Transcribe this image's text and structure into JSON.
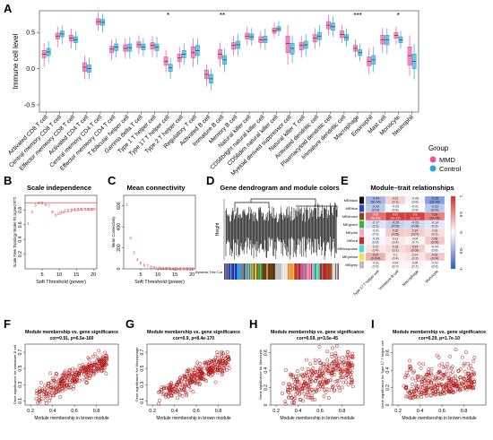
{
  "colors": {
    "mmd": "#e8559e",
    "control": "#29a8d6",
    "network_red": "#d42a2a",
    "scatter": "#b01818",
    "heat_neg": "#2c58c8",
    "heat_pos": "#d42a2a",
    "heat_mid": "#ffffff"
  },
  "chart_data": [
    {
      "panel": "A",
      "type": "box",
      "ylabel": "Immune cell level",
      "ylim": [
        -0.6,
        0.8
      ],
      "yticks": [
        "-0.5",
        "0.0",
        "0.5"
      ],
      "legend": {
        "title": "Group",
        "entries": [
          "MMD",
          "Control"
        ],
        "position": "right"
      },
      "categories": [
        "Activated CD8 T cell",
        "Central memory CD8 T cell",
        "Effector memeory CD8 T cell",
        "Activated CD4 T cell",
        "Central memory CD4 T cell",
        "Effector memeory CD4 T cell",
        "T follicular helper cell",
        "Gamma delta T cell",
        "Type 1 T helper cell",
        "Type 17 T helper cell",
        "Type 2 T helper cell",
        "Regulatory T cell",
        "Activated B cell",
        "Immature B cell",
        "Memory B cell",
        "Natural killer cell",
        "CD56bright natural killer cell",
        "CD56dim natural killer cell",
        "Myeloid derived suppressor cell",
        "Natural killer T cell",
        "Activated dendritic cell",
        "Plasmacytoid dendritic cell",
        "Immature dendritic cell",
        "Macrophage",
        "Eosinophil",
        "Mast cell",
        "Monocyte",
        "Neutrophil"
      ],
      "significance": [
        "",
        "",
        "",
        "",
        "",
        "",
        "",
        "",
        "",
        "*",
        "",
        "",
        "",
        "**",
        "",
        "",
        "",
        "",
        "",
        "",
        "",
        "",
        "",
        "***",
        "",
        "",
        "*",
        ""
      ],
      "series": [
        {
          "name": "MMD",
          "medians": [
            0.2,
            0.45,
            0.42,
            0.02,
            0.65,
            0.27,
            0.28,
            0.33,
            0.32,
            0.1,
            0.15,
            0.22,
            -0.08,
            0.2,
            0.32,
            0.45,
            0.4,
            0.52,
            0.35,
            0.32,
            0.42,
            0.6,
            0.47,
            0.28,
            0.1,
            0.4,
            0.46,
            0.18
          ],
          "q1": [
            0.15,
            0.41,
            0.38,
            -0.04,
            0.61,
            0.22,
            0.24,
            0.29,
            0.27,
            0.05,
            0.1,
            0.15,
            -0.14,
            0.14,
            0.27,
            0.41,
            0.36,
            0.49,
            0.22,
            0.26,
            0.37,
            0.55,
            0.43,
            0.24,
            0.04,
            0.34,
            0.42,
            0.05
          ],
          "q3": [
            0.25,
            0.49,
            0.46,
            0.08,
            0.69,
            0.31,
            0.33,
            0.37,
            0.36,
            0.16,
            0.2,
            0.3,
            -0.02,
            0.26,
            0.36,
            0.49,
            0.44,
            0.56,
            0.45,
            0.36,
            0.47,
            0.65,
            0.52,
            0.32,
            0.16,
            0.46,
            0.5,
            0.3
          ],
          "min": [
            0.02,
            0.3,
            0.28,
            -0.15,
            0.52,
            0.12,
            0.14,
            0.2,
            0.16,
            -0.05,
            0.0,
            0.02,
            -0.25,
            0.02,
            0.18,
            0.32,
            0.28,
            0.42,
            0.05,
            0.15,
            0.27,
            0.46,
            0.35,
            0.15,
            -0.08,
            0.22,
            0.34,
            -0.1
          ],
          "max": [
            0.35,
            0.58,
            0.55,
            0.18,
            0.78,
            0.4,
            0.42,
            0.46,
            0.45,
            0.26,
            0.3,
            0.42,
            0.06,
            0.36,
            0.45,
            0.58,
            0.52,
            0.64,
            0.6,
            0.45,
            0.56,
            0.74,
            0.6,
            0.4,
            0.28,
            0.56,
            0.58,
            0.46
          ]
        },
        {
          "name": "Control",
          "medians": [
            0.23,
            0.48,
            0.4,
            0.0,
            0.64,
            0.3,
            0.29,
            0.3,
            0.3,
            0.01,
            0.2,
            0.25,
            -0.14,
            0.12,
            0.33,
            0.44,
            0.4,
            0.55,
            0.28,
            0.33,
            0.45,
            0.58,
            0.43,
            0.22,
            0.12,
            0.4,
            0.4,
            0.1
          ],
          "q1": [
            0.18,
            0.44,
            0.36,
            -0.05,
            0.6,
            0.25,
            0.24,
            0.26,
            0.25,
            -0.04,
            0.15,
            0.18,
            -0.2,
            0.06,
            0.28,
            0.4,
            0.36,
            0.52,
            0.2,
            0.28,
            0.4,
            0.53,
            0.39,
            0.18,
            0.06,
            0.33,
            0.36,
            0.0
          ],
          "q3": [
            0.28,
            0.52,
            0.44,
            0.05,
            0.68,
            0.34,
            0.34,
            0.34,
            0.34,
            0.06,
            0.25,
            0.32,
            -0.08,
            0.18,
            0.38,
            0.48,
            0.45,
            0.58,
            0.35,
            0.38,
            0.5,
            0.63,
            0.47,
            0.26,
            0.18,
            0.46,
            0.44,
            0.2
          ],
          "min": [
            0.08,
            0.34,
            0.26,
            -0.15,
            0.5,
            0.15,
            0.14,
            0.17,
            0.15,
            -0.14,
            0.05,
            0.05,
            -0.3,
            -0.05,
            0.18,
            0.32,
            0.26,
            0.45,
            0.08,
            0.18,
            0.3,
            0.44,
            0.3,
            0.1,
            -0.05,
            0.2,
            0.28,
            -0.15
          ],
          "max": [
            0.38,
            0.6,
            0.52,
            0.15,
            0.76,
            0.42,
            0.44,
            0.42,
            0.44,
            0.15,
            0.35,
            0.42,
            0.0,
            0.28,
            0.48,
            0.56,
            0.55,
            0.66,
            0.46,
            0.48,
            0.6,
            0.72,
            0.56,
            0.34,
            0.3,
            0.56,
            0.52,
            0.34
          ]
        }
      ]
    },
    {
      "panel": "B",
      "type": "scatter",
      "title": "Scale independence",
      "xlabel": "Soft Threshold (power)",
      "ylabel": "Scale Free Topology Model Fit,signed R^2",
      "xlim": [
        0,
        21
      ],
      "ylim": [
        0,
        1
      ],
      "xticks": [
        5,
        10,
        15,
        20
      ],
      "yticks": [
        0.2,
        0.4,
        0.6,
        0.8
      ],
      "cutoff": 0.9,
      "x": [
        1,
        2,
        3,
        4,
        5,
        6,
        7,
        8,
        9,
        10,
        11,
        12,
        13,
        14,
        15,
        16,
        17,
        18,
        19,
        20
      ],
      "y": [
        0.62,
        0.78,
        0.87,
        0.9,
        0.9,
        0.88,
        0.86,
        0.78,
        0.74,
        0.76,
        0.78,
        0.8,
        0.8,
        0.81,
        0.81,
        0.82,
        0.82,
        0.82,
        0.82,
        0.82
      ]
    },
    {
      "panel": "C",
      "type": "scatter",
      "title": "Mean connectivity",
      "xlabel": "Soft Threshold (power)",
      "ylabel": "Mean Connectivity",
      "xlim": [
        0,
        21
      ],
      "ylim": [
        0,
        700
      ],
      "xticks": [
        5,
        10,
        15,
        20
      ],
      "yticks": [
        0,
        200,
        400,
        600
      ],
      "x": [
        1,
        2,
        3,
        4,
        5,
        6,
        7,
        8,
        9,
        10,
        11,
        12,
        13,
        14,
        15,
        16,
        17,
        18,
        19,
        20
      ],
      "y": [
        620,
        300,
        160,
        95,
        60,
        40,
        28,
        20,
        15,
        12,
        10,
        8,
        7,
        6,
        5,
        4,
        4,
        3,
        3,
        3
      ]
    },
    {
      "panel": "D",
      "type": "dendrogram",
      "title": "Gene dendrogram and module colors",
      "ylabel": "Height",
      "track_label": "Dynamic Tree Cut",
      "module_colors": [
        "#1e3fd2",
        "#1e3fd2",
        "#3a9de0",
        "#3a9de0",
        "#8ed34a",
        "#2c9e2c",
        "#6b3b1a",
        "#6b3b1a",
        "#c0c0c0",
        "#e6e6e6",
        "#f2c94c",
        "#d13030",
        "#c75a9a",
        "#ff8fbf",
        "#40e0d0",
        "#b02828",
        "#a0522d",
        "#d9d9d9"
      ]
    },
    {
      "panel": "E",
      "type": "heatmap",
      "title": "Module–trait relationships",
      "rows": [
        "MEblack",
        "MEblue",
        "MEbrown",
        "MEgreen",
        "MEpink",
        "MEred",
        "MEturquoise",
        "MEyellow",
        "MEgrey"
      ],
      "row_colors": [
        "#111111",
        "#2a42d4",
        "#8b4513",
        "#34b434",
        "#f7a3c3",
        "#e02020",
        "#40e0d0",
        "#f4e04d",
        "#bdbdbd"
      ],
      "columns": [
        "Type 17 T helper cell",
        "Immature B cell",
        "Macrophage",
        "Monocyte"
      ],
      "values": [
        [
          -0.44,
          0.21,
          -0.06,
          -0.58
        ],
        [
          -0.33,
          -0.03,
          -0.01,
          -0.33
        ],
        [
          0.68,
          0.91,
          0.9,
          0.59
        ],
        [
          -0.17,
          -0.29,
          -0.23,
          -0.14
        ],
        [
          -0.01,
          0.25,
          0.24,
          0.16
        ],
        [
          -0.06,
          0.11,
          0.04,
          0.26
        ],
        [
          0.12,
          0.18,
          0.24,
          -0.04
        ],
        [
          0.37,
          0.1,
          0.14,
          0.26
        ],
        [
          -0.01,
          0.04,
          0.05,
          -0.02
        ]
      ],
      "labels": [
        [
          "-0.44\n(5e-04)",
          "0.21\n(0.1)",
          "-0.06\n(0.6)",
          "-0.58\n(2e-06)"
        ],
        [
          "-0.33\n(0.01)",
          "-0.03\n(0.8)",
          "-0.01\n(0.9)",
          "-0.33\n(0.01)"
        ],
        [
          "0.68\n(4e-09)",
          "0.91\n(1e-22)",
          "0.9\n(1e-21)",
          "0.59\n(1e-06)"
        ],
        [
          "-0.17\n(0.2)",
          "-0.29\n(0.03)",
          "-0.23\n(0.08)",
          "-0.14\n(0.3)"
        ],
        [
          "-0.01\n(0.9)",
          "0.25\n(0.05)",
          "0.24\n(0.07)",
          "0.16\n(0.2)"
        ],
        [
          "-0.06\n(0.6)",
          "0.11\n(0.4)",
          "0.04\n(0.7)",
          "0.26\n(0.05)"
        ],
        [
          "0.12\n(0.4)",
          "0.18\n(0.2)",
          "0.24\n(0.06)",
          "-0.04\n(0.8)"
        ],
        [
          "0.37\n(0.004)",
          "0.1\n(0.4)",
          "0.14\n(0.3)",
          "0.26\n(0.04)"
        ],
        [
          "-0.01\n(0.9)",
          "0.04\n(0.7)",
          "0.05\n(0.7)",
          "-0.02\n(0.9)"
        ]
      ],
      "colorbar_ticks": [
        "1",
        "0.5",
        "0",
        "-0.5",
        "-1"
      ],
      "colorbar_range": [
        -1,
        1
      ]
    },
    {
      "panel": "F",
      "type": "scatter",
      "title": "Module membership vs. gene significance",
      "subtitle": "cor=0.91, p=6.5e-160",
      "xlabel": "Module membership in brown module",
      "ylabel": "Gene significance for Immature B cell",
      "xlim": [
        0.15,
        1.0
      ],
      "ylim": [
        0.05,
        0.8
      ],
      "xticks": [
        0.2,
        0.4,
        0.6,
        0.8
      ],
      "yticks": [
        0.1,
        0.3,
        0.5,
        0.7
      ],
      "n_points": 320,
      "correlation": 0.91
    },
    {
      "panel": "G",
      "type": "scatter",
      "title": "Module membership vs. gene significance",
      "subtitle": "cor=0.9, p=8.4e-170",
      "xlabel": "Module membership in brown module",
      "ylabel": "Gene significance for Macrophage",
      "xlim": [
        0.15,
        1.0
      ],
      "ylim": [
        0.05,
        0.8
      ],
      "xticks": [
        0.2,
        0.4,
        0.6,
        0.8
      ],
      "yticks": [
        0.1,
        0.3,
        0.5,
        0.7
      ],
      "n_points": 320,
      "correlation": 0.9
    },
    {
      "panel": "H",
      "type": "scatter",
      "title": "Module membership vs. gene significance",
      "subtitle": "cor=0.59, p=3.5e-45",
      "xlabel": "Module membership in brown module",
      "ylabel": "Gene significance for Monocyte",
      "xlim": [
        0.15,
        1.0
      ],
      "ylim": [
        0.0,
        0.7
      ],
      "xticks": [
        0.2,
        0.4,
        0.6,
        0.8
      ],
      "yticks": [
        0.0,
        0.2,
        0.4,
        0.6
      ],
      "n_points": 320,
      "correlation": 0.59
    },
    {
      "panel": "I",
      "type": "scatter",
      "title": "Module membership vs. gene significance",
      "subtitle": "cor=0.29, p=1.7e-10",
      "xlabel": "Module membership in brown module",
      "ylabel": "Gene significance for Type 17 T helper cell",
      "xlim": [
        0.15,
        1.0
      ],
      "ylim": [
        0.0,
        0.7
      ],
      "xticks": [
        0.2,
        0.4,
        0.6,
        0.8
      ],
      "yticks": [
        0.0,
        0.2,
        0.4,
        0.6
      ],
      "n_points": 320,
      "correlation": 0.29
    }
  ],
  "panel_labels": [
    "A",
    "B",
    "C",
    "D",
    "E",
    "F",
    "G",
    "H",
    "I"
  ]
}
